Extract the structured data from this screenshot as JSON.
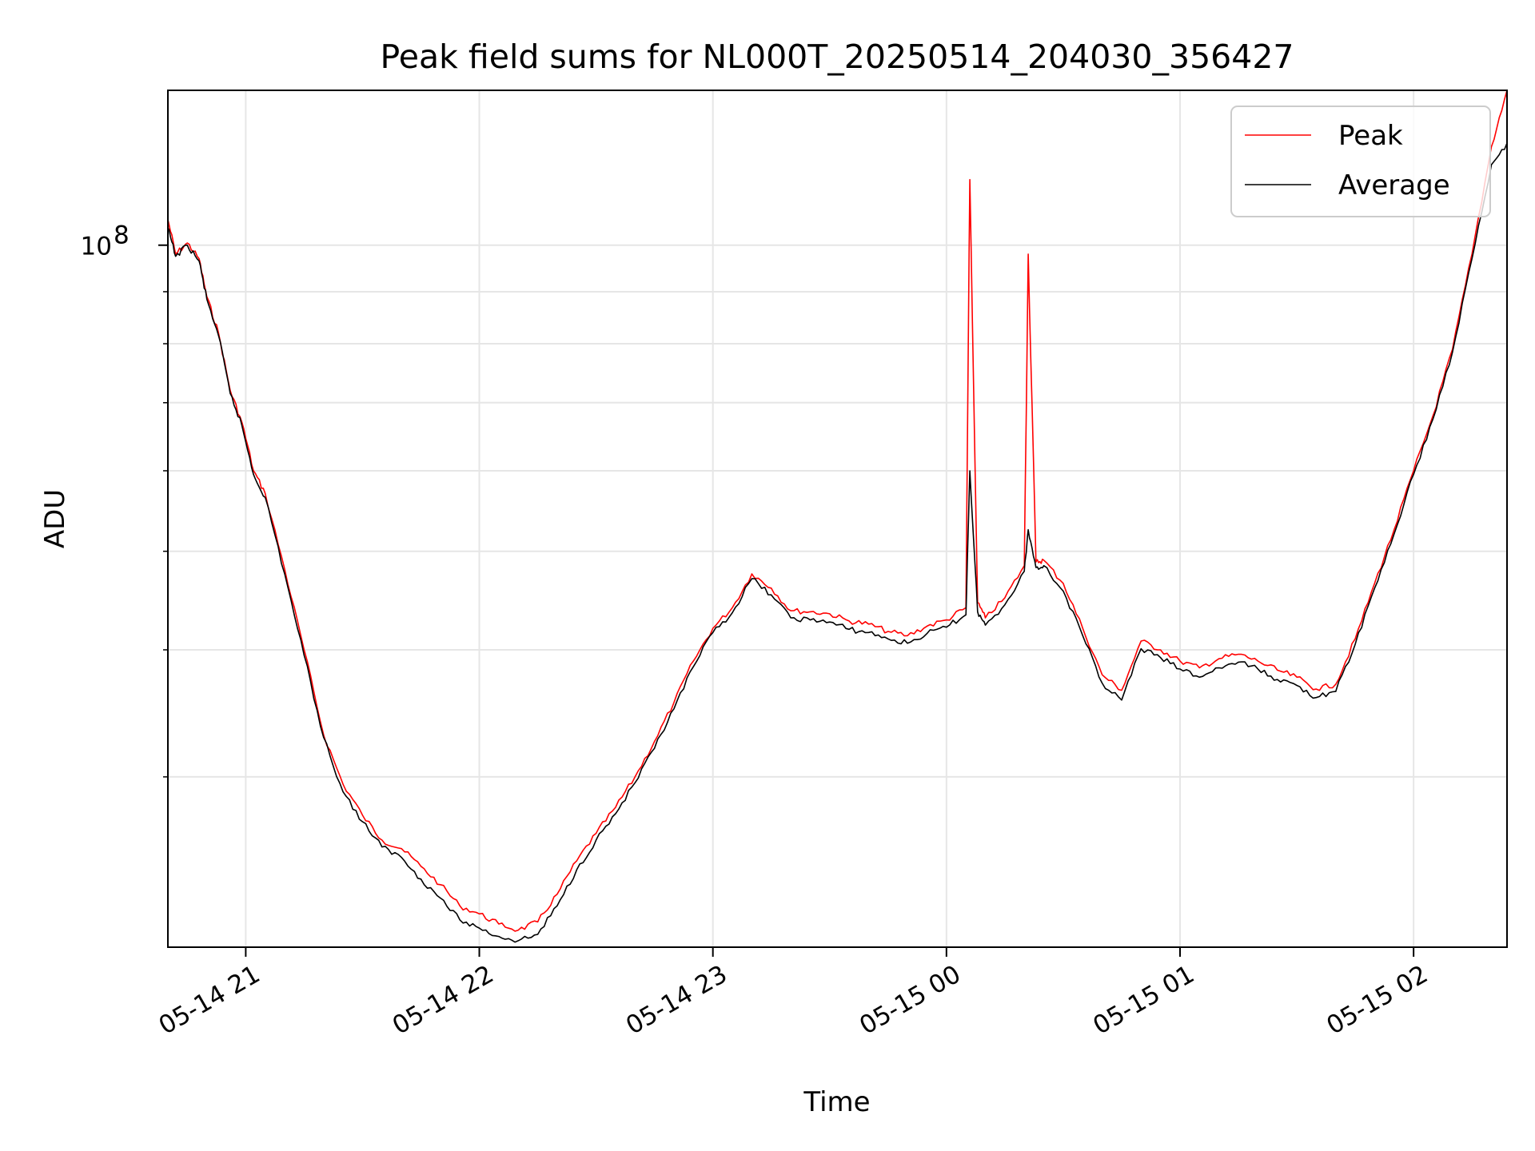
{
  "chart_data": {
    "type": "line",
    "title": "Peak field sums for NL000T_20250514_204030_356427",
    "xlabel": "Time",
    "ylabel": "ADU",
    "yscale": "log",
    "grid": true,
    "legend_position": "top-right",
    "xlim": [
      "2025-05-14 20:40",
      "2025-05-15 02:24"
    ],
    "ylim": [
      20400000,
      142000000
    ],
    "x_ticks": [
      {
        "value": "2025-05-14 21:00",
        "label": "05-14 21"
      },
      {
        "value": "2025-05-14 22:00",
        "label": "05-14 22"
      },
      {
        "value": "2025-05-14 23:00",
        "label": "05-14 23"
      },
      {
        "value": "2025-05-15 00:00",
        "label": "05-15 00"
      },
      {
        "value": "2025-05-15 01:00",
        "label": "05-15 01"
      },
      {
        "value": "2025-05-15 02:00",
        "label": "05-15 02"
      }
    ],
    "y_major_ticks": [
      {
        "value": 100000000,
        "label_base": "10",
        "label_exp": "8"
      }
    ],
    "y_minor_ticks": [
      30000000,
      40000000,
      50000000,
      60000000,
      70000000,
      80000000,
      90000000
    ],
    "x": [
      "2025-05-14 20:40",
      "2025-05-14 20:42",
      "2025-05-14 20:45",
      "2025-05-14 20:48",
      "2025-05-14 20:50",
      "2025-05-14 20:53",
      "2025-05-14 20:56",
      "2025-05-14 20:59",
      "2025-05-14 21:02",
      "2025-05-14 21:05",
      "2025-05-14 21:10",
      "2025-05-14 21:15",
      "2025-05-14 21:20",
      "2025-05-14 21:25",
      "2025-05-14 21:30",
      "2025-05-14 21:35",
      "2025-05-14 21:40",
      "2025-05-14 21:45",
      "2025-05-14 21:50",
      "2025-05-14 21:55",
      "2025-05-14 22:00",
      "2025-05-14 22:05",
      "2025-05-14 22:10",
      "2025-05-14 22:15",
      "2025-05-14 22:20",
      "2025-05-14 22:25",
      "2025-05-14 22:30",
      "2025-05-14 22:35",
      "2025-05-14 22:40",
      "2025-05-14 22:45",
      "2025-05-14 22:50",
      "2025-05-14 22:55",
      "2025-05-14 23:00",
      "2025-05-14 23:05",
      "2025-05-14 23:10",
      "2025-05-14 23:15",
      "2025-05-14 23:20",
      "2025-05-14 23:25",
      "2025-05-14 23:30",
      "2025-05-14 23:35",
      "2025-05-14 23:40",
      "2025-05-14 23:45",
      "2025-05-14 23:50",
      "2025-05-14 23:55",
      "2025-05-15 00:00",
      "2025-05-15 00:05",
      "2025-05-15 00:06",
      "2025-05-15 00:08",
      "2025-05-15 00:10",
      "2025-05-15 00:15",
      "2025-05-15 00:20",
      "2025-05-15 00:21",
      "2025-05-15 00:23",
      "2025-05-15 00:25",
      "2025-05-15 00:30",
      "2025-05-15 00:35",
      "2025-05-15 00:40",
      "2025-05-15 00:45",
      "2025-05-15 00:50",
      "2025-05-15 00:55",
      "2025-05-15 01:00",
      "2025-05-15 01:05",
      "2025-05-15 01:10",
      "2025-05-15 01:15",
      "2025-05-15 01:20",
      "2025-05-15 01:25",
      "2025-05-15 01:30",
      "2025-05-15 01:35",
      "2025-05-15 01:40",
      "2025-05-15 01:45",
      "2025-05-15 01:50",
      "2025-05-15 01:55",
      "2025-05-15 02:00",
      "2025-05-15 02:05",
      "2025-05-15 02:10",
      "2025-05-15 02:15",
      "2025-05-15 02:20",
      "2025-05-15 02:24"
    ],
    "series": [
      {
        "name": "Peak",
        "color": "#ff0000",
        "values": [
          106000000,
          98000000,
          100500000,
          97000000,
          89000000,
          82000000,
          72000000,
          67000000,
          60000000,
          57000000,
          48000000,
          40000000,
          33000000,
          29500000,
          27500000,
          26000000,
          25500000,
          24500000,
          23500000,
          22400000,
          22000000,
          21500000,
          21200000,
          21600000,
          23000000,
          24800000,
          26400000,
          28000000,
          30000000,
          32500000,
          35500000,
          39000000,
          42000000,
          44000000,
          47500000,
          46000000,
          43700000,
          43600000,
          43400000,
          42700000,
          42400000,
          41700000,
          41300000,
          42200000,
          42800000,
          44000000,
          116000000,
          44500000,
          43000000,
          45000000,
          48400000,
          98000000,
          48800000,
          49000000,
          46500000,
          42000000,
          37800000,
          36500000,
          40800000,
          40000000,
          39000000,
          38400000,
          39200000,
          39600000,
          39000000,
          38200000,
          37600000,
          36600000,
          37000000,
          41000000,
          46500000,
          52500000,
          60000000,
          68000000,
          79000000,
          98000000,
          125000000,
          142000000
        ]
      },
      {
        "name": "Average",
        "color": "#000000",
        "values": [
          104000000,
          97500000,
          100000000,
          96500000,
          88500000,
          81500000,
          71500000,
          66500000,
          59500000,
          56500000,
          47500000,
          39500000,
          32800000,
          29000000,
          27100000,
          25600000,
          25000000,
          23800000,
          22800000,
          21700000,
          21300000,
          20900000,
          20700000,
          21000000,
          22400000,
          24300000,
          26000000,
          27600000,
          29600000,
          32000000,
          35000000,
          38500000,
          41600000,
          43500000,
          47000000,
          45300000,
          43000000,
          42800000,
          42600000,
          41900000,
          41600000,
          41000000,
          40600000,
          41500000,
          42100000,
          43300000,
          60000000,
          43600000,
          42300000,
          44300000,
          47800000,
          52500000,
          48200000,
          48400000,
          45700000,
          41300000,
          37100000,
          35700000,
          40100000,
          39300000,
          38300000,
          37600000,
          38400000,
          38900000,
          38300000,
          37400000,
          36900000,
          35900000,
          36400000,
          40500000,
          46000000,
          52000000,
          59500000,
          67500000,
          78500000,
          97000000,
          120000000,
          126000000
        ]
      }
    ]
  }
}
